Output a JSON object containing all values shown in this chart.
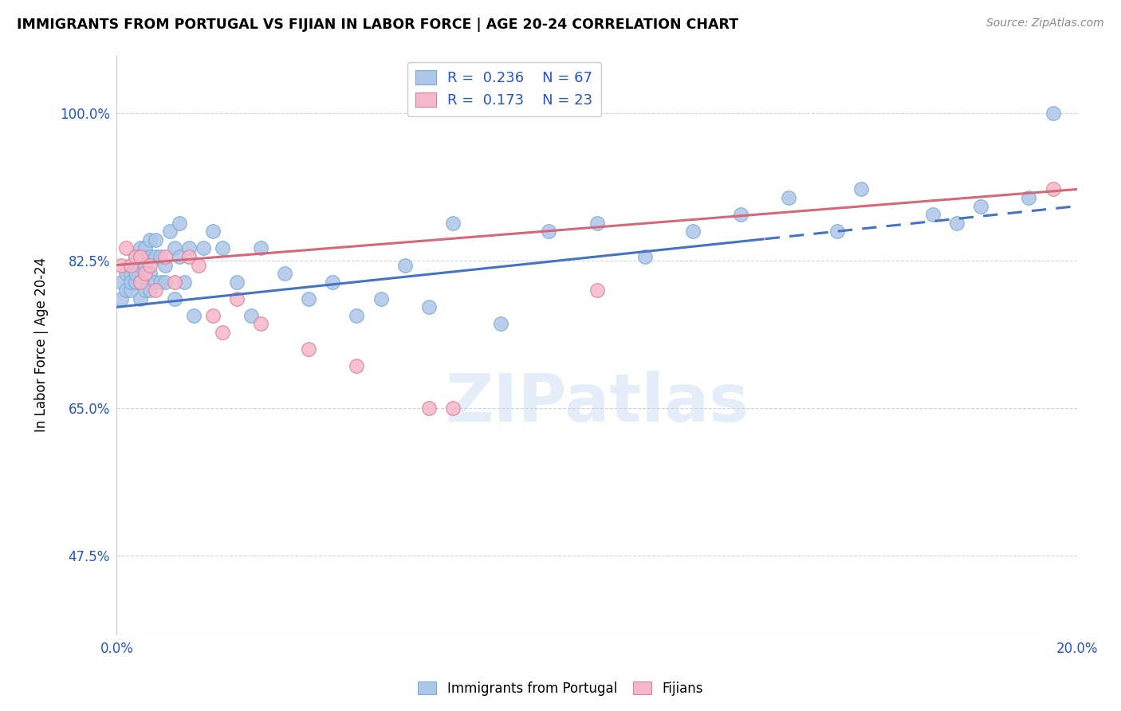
{
  "title": "IMMIGRANTS FROM PORTUGAL VS FIJIAN IN LABOR FORCE | AGE 20-24 CORRELATION CHART",
  "source_text": "Source: ZipAtlas.com",
  "ylabel": "In Labor Force | Age 20-24",
  "x_min": 0.0,
  "x_max": 0.2,
  "y_min": 0.38,
  "y_max": 1.07,
  "y_ticks": [
    0.475,
    0.65,
    0.825,
    1.0
  ],
  "y_tick_labels": [
    "47.5%",
    "65.0%",
    "82.5%",
    "100.0%"
  ],
  "x_ticks": [
    0.0,
    0.05,
    0.1,
    0.15,
    0.2
  ],
  "x_tick_labels": [
    "0.0%",
    "",
    "",
    "",
    "20.0%"
  ],
  "watermark": "ZIPatlas",
  "legend_R1": "0.236",
  "legend_N1": "67",
  "legend_R2": "0.173",
  "legend_N2": "23",
  "blue_color": "#aec6e8",
  "pink_color": "#f5b8ca",
  "line_blue": "#4472c4",
  "line_pink": "#d4687a",
  "blue_line_intercept": 0.77,
  "blue_line_slope": 0.6,
  "pink_line_intercept": 0.82,
  "pink_line_slope": 0.45,
  "blue_dash_cutoff": 0.135,
  "portugal_x": [
    0.001,
    0.001,
    0.002,
    0.002,
    0.003,
    0.003,
    0.003,
    0.003,
    0.004,
    0.004,
    0.004,
    0.005,
    0.005,
    0.005,
    0.005,
    0.005,
    0.006,
    0.006,
    0.006,
    0.006,
    0.007,
    0.007,
    0.007,
    0.007,
    0.008,
    0.008,
    0.008,
    0.009,
    0.009,
    0.01,
    0.01,
    0.011,
    0.012,
    0.012,
    0.013,
    0.013,
    0.014,
    0.015,
    0.016,
    0.018,
    0.02,
    0.022,
    0.025,
    0.028,
    0.03,
    0.035,
    0.04,
    0.045,
    0.05,
    0.055,
    0.06,
    0.065,
    0.07,
    0.08,
    0.09,
    0.1,
    0.11,
    0.12,
    0.13,
    0.14,
    0.15,
    0.155,
    0.17,
    0.175,
    0.18,
    0.19,
    0.195
  ],
  "portugal_y": [
    0.78,
    0.8,
    0.79,
    0.81,
    0.79,
    0.81,
    0.8,
    0.82,
    0.8,
    0.81,
    0.83,
    0.78,
    0.8,
    0.82,
    0.84,
    0.8,
    0.79,
    0.81,
    0.82,
    0.84,
    0.79,
    0.81,
    0.83,
    0.85,
    0.8,
    0.83,
    0.85,
    0.8,
    0.83,
    0.82,
    0.8,
    0.86,
    0.84,
    0.78,
    0.87,
    0.83,
    0.8,
    0.84,
    0.76,
    0.84,
    0.86,
    0.84,
    0.8,
    0.76,
    0.84,
    0.81,
    0.78,
    0.8,
    0.76,
    0.78,
    0.82,
    0.77,
    0.87,
    0.75,
    0.86,
    0.87,
    0.83,
    0.86,
    0.88,
    0.9,
    0.86,
    0.91,
    0.88,
    0.87,
    0.89,
    0.9,
    1.0
  ],
  "fijian_x": [
    0.001,
    0.002,
    0.003,
    0.004,
    0.005,
    0.005,
    0.006,
    0.007,
    0.008,
    0.01,
    0.012,
    0.015,
    0.017,
    0.02,
    0.022,
    0.025,
    0.03,
    0.04,
    0.05,
    0.065,
    0.07,
    0.1,
    0.195
  ],
  "fijian_y": [
    0.82,
    0.84,
    0.82,
    0.83,
    0.8,
    0.83,
    0.81,
    0.82,
    0.79,
    0.83,
    0.8,
    0.83,
    0.82,
    0.76,
    0.74,
    0.78,
    0.75,
    0.72,
    0.7,
    0.65,
    0.65,
    0.79,
    0.91
  ]
}
